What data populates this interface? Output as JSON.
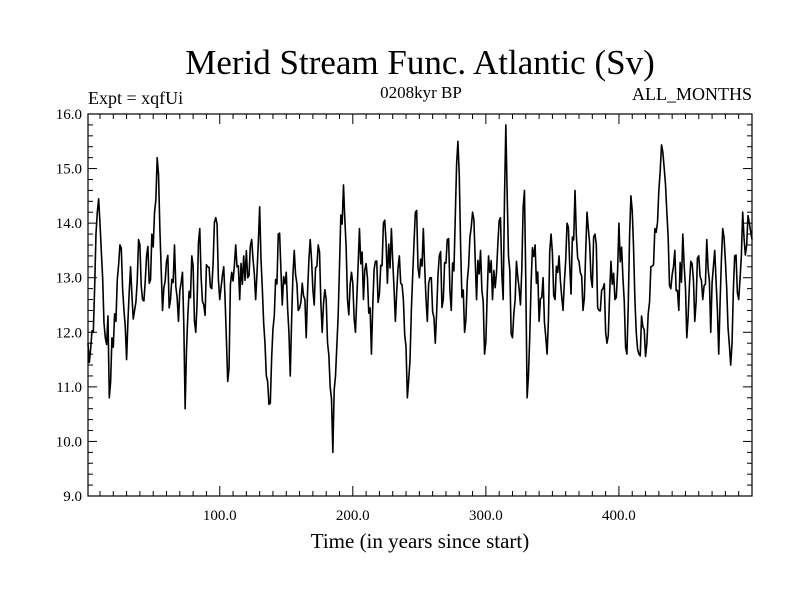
{
  "chart_data": {
    "type": "line",
    "title": "Merid Stream Func. Atlantic (Sv)",
    "subtitle_left": "Expt = xqfUi",
    "subtitle_center": "0208kyr BP",
    "subtitle_right": "ALL_MONTHS",
    "xlabel": "Time (in years since start)",
    "ylabel": "",
    "xlim": [
      1,
      500
    ],
    "ylim": [
      9.0,
      16.0
    ],
    "xticks": [
      100,
      200,
      300,
      400
    ],
    "xtick_labels": [
      "100.0",
      "200.0",
      "300.0",
      "400.0"
    ],
    "yticks": [
      9,
      10,
      11,
      12,
      13,
      14,
      15,
      16
    ],
    "ytick_labels": [
      "9.0",
      "10.0",
      "11.0",
      "12.0",
      "13.0",
      "14.0",
      "15.0",
      "16.0"
    ],
    "grid": false,
    "legend": "none",
    "series": [
      {
        "name": "Merid Stream Func. Atlantic",
        "color": "#000000",
        "keypoints": [
          [
            1,
            11.8
          ],
          [
            3,
            11.7
          ],
          [
            5,
            12.0
          ],
          [
            7,
            13.8
          ],
          [
            8,
            14.2
          ],
          [
            10,
            14.0
          ],
          [
            12,
            13.0
          ],
          [
            14,
            11.9
          ],
          [
            16,
            12.3
          ],
          [
            17,
            10.8
          ],
          [
            19,
            11.9
          ],
          [
            22,
            12.2
          ],
          [
            25,
            13.6
          ],
          [
            27,
            12.8
          ],
          [
            30,
            11.5
          ],
          [
            33,
            13.2
          ],
          [
            36,
            12.4
          ],
          [
            39,
            13.7
          ],
          [
            42,
            12.6
          ],
          [
            45,
            13.4
          ],
          [
            47,
            12.9
          ],
          [
            49,
            13.8
          ],
          [
            51,
            14.2
          ],
          [
            53,
            15.2
          ],
          [
            55,
            13.9
          ],
          [
            57,
            12.4
          ],
          [
            60,
            13.3
          ],
          [
            63,
            12.6
          ],
          [
            66,
            13.6
          ],
          [
            69,
            12.2
          ],
          [
            72,
            13.1
          ],
          [
            74,
            10.6
          ],
          [
            76,
            12.3
          ],
          [
            79,
            13.4
          ],
          [
            82,
            12.0
          ],
          [
            85,
            13.9
          ],
          [
            88,
            12.5
          ],
          [
            91,
            13.2
          ],
          [
            94,
            12.8
          ],
          [
            97,
            14.1
          ],
          [
            100,
            12.6
          ],
          [
            103,
            13.2
          ],
          [
            106,
            11.1
          ],
          [
            109,
            13.1
          ],
          [
            112,
            13.6
          ],
          [
            115,
            12.6
          ],
          [
            118,
            13.4
          ],
          [
            121,
            13.0
          ],
          [
            124,
            13.7
          ],
          [
            127,
            12.6
          ],
          [
            130,
            14.3
          ],
          [
            132,
            12.8
          ],
          [
            134,
            11.8
          ],
          [
            136,
            11.1
          ],
          [
            138,
            10.7
          ],
          [
            141,
            12.3
          ],
          [
            144,
            13.8
          ],
          [
            147,
            12.5
          ],
          [
            150,
            13.1
          ],
          [
            153,
            11.2
          ],
          [
            156,
            13.5
          ],
          [
            159,
            12.4
          ],
          [
            162,
            12.9
          ],
          [
            165,
            11.9
          ],
          [
            168,
            13.7
          ],
          [
            171,
            12.5
          ],
          [
            174,
            13.6
          ],
          [
            177,
            12.0
          ],
          [
            180,
            12.6
          ],
          [
            183,
            11.0
          ],
          [
            185,
            9.8
          ],
          [
            187,
            11.2
          ],
          [
            190,
            13.2
          ],
          [
            193,
            14.7
          ],
          [
            196,
            12.6
          ],
          [
            199,
            13.1
          ],
          [
            202,
            12.0
          ],
          [
            205,
            13.9
          ],
          [
            208,
            12.6
          ],
          [
            211,
            13.0
          ],
          [
            214,
            11.6
          ],
          [
            217,
            13.3
          ],
          [
            220,
            12.7
          ],
          [
            223,
            14.0
          ],
          [
            226,
            12.9
          ],
          [
            229,
            13.9
          ],
          [
            232,
            12.2
          ],
          [
            235,
            13.4
          ],
          [
            238,
            12.6
          ],
          [
            241,
            10.8
          ],
          [
            244,
            12.4
          ],
          [
            247,
            14.2
          ],
          [
            250,
            13.0
          ],
          [
            253,
            13.9
          ],
          [
            256,
            12.2
          ],
          [
            259,
            13.0
          ],
          [
            262,
            11.8
          ],
          [
            265,
            13.4
          ],
          [
            268,
            12.6
          ],
          [
            271,
            13.7
          ],
          [
            274,
            12.4
          ],
          [
            277,
            14.1
          ],
          [
            279,
            15.5
          ],
          [
            281,
            13.6
          ],
          [
            284,
            12.0
          ],
          [
            287,
            13.2
          ],
          [
            290,
            14.2
          ],
          [
            293,
            12.6
          ],
          [
            296,
            13.5
          ],
          [
            299,
            11.6
          ],
          [
            302,
            13.4
          ],
          [
            305,
            12.6
          ],
          [
            308,
            13.1
          ],
          [
            311,
            14.1
          ],
          [
            313,
            12.6
          ],
          [
            315,
            15.8
          ],
          [
            317,
            13.4
          ],
          [
            320,
            11.9
          ],
          [
            323,
            13.3
          ],
          [
            326,
            12.5
          ],
          [
            329,
            14.6
          ],
          [
            331,
            10.8
          ],
          [
            334,
            12.9
          ],
          [
            337,
            13.6
          ],
          [
            340,
            12.2
          ],
          [
            343,
            13.0
          ],
          [
            346,
            11.6
          ],
          [
            349,
            13.8
          ],
          [
            352,
            12.6
          ],
          [
            355,
            13.4
          ],
          [
            358,
            12.4
          ],
          [
            361,
            14.0
          ],
          [
            364,
            12.7
          ],
          [
            367,
            14.6
          ],
          [
            370,
            13.3
          ],
          [
            373,
            12.4
          ],
          [
            376,
            14.2
          ],
          [
            379,
            13.0
          ],
          [
            382,
            13.8
          ],
          [
            385,
            12.4
          ],
          [
            388,
            12.8
          ],
          [
            391,
            11.8
          ],
          [
            394,
            13.3
          ],
          [
            397,
            12.6
          ],
          [
            400,
            14.0
          ],
          [
            403,
            13.0
          ],
          [
            406,
            11.6
          ],
          [
            409,
            14.5
          ],
          [
            412,
            12.6
          ],
          [
            415,
            11.6
          ],
          [
            418,
            12.1
          ],
          [
            421,
            11.8
          ],
          [
            424,
            13.2
          ],
          [
            427,
            13.9
          ],
          [
            430,
            14.6
          ],
          [
            433,
            15.3
          ],
          [
            436,
            14.2
          ],
          [
            439,
            12.8
          ],
          [
            442,
            13.5
          ],
          [
            445,
            12.4
          ],
          [
            448,
            13.8
          ],
          [
            451,
            11.9
          ],
          [
            454,
            13.3
          ],
          [
            457,
            12.2
          ],
          [
            460,
            13.4
          ],
          [
            463,
            12.6
          ],
          [
            466,
            13.7
          ],
          [
            469,
            12.0
          ],
          [
            472,
            13.5
          ],
          [
            475,
            11.6
          ],
          [
            478,
            13.9
          ],
          [
            481,
            12.8
          ],
          [
            484,
            11.4
          ],
          [
            487,
            13.4
          ],
          [
            490,
            12.6
          ],
          [
            493,
            14.2
          ],
          [
            496,
            13.6
          ],
          [
            498,
            14.0
          ],
          [
            500,
            13.7
          ]
        ]
      }
    ]
  }
}
